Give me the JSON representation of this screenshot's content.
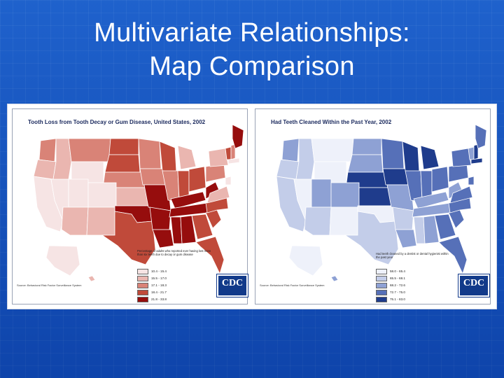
{
  "slide": {
    "title_line1": "Multivariate Relationships:",
    "title_line2": "Map Comparison"
  },
  "maps": [
    {
      "title": "Tooth Loss from Tooth Decay or Gum Disease, United States, 2002",
      "legend_caption": "Percentage of adults who reported ever having lost more than six teeth due to decay or gum disease",
      "legend": [
        {
          "label": "10.4 - 15.4",
          "color": "#f6e4e4"
        },
        {
          "label": "15.5 - 17.0",
          "color": "#eab6b0"
        },
        {
          "label": "17.1 - 18.3",
          "color": "#d98377"
        },
        {
          "label": "18.4 - 21.7",
          "color": "#c04a3a"
        },
        {
          "label": "21.8 - 33.8",
          "color": "#960d0d"
        }
      ],
      "source": "Source: Behavioral Risk Factor Surveillance System",
      "logo_text": "CDC"
    },
    {
      "title": "Had Teeth Cleaned Within the Past Year, 2002",
      "legend_caption": "Had teeth cleaned by a dentist or dental hygienist within the past year",
      "legend": [
        {
          "label": "58.0 - 65.4",
          "color": "#eef1fa"
        },
        {
          "label": "65.5 - 68.1",
          "color": "#c3cde9"
        },
        {
          "label": "68.2 - 72.6",
          "color": "#8ea1d4"
        },
        {
          "label": "72.7 - 75.0",
          "color": "#5670b8"
        },
        {
          "label": "75.1 - 83.0",
          "color": "#1f3c8c"
        }
      ],
      "source": "Source: Behavioral Risk Factor Surveillance System",
      "logo_text": "CDC"
    }
  ]
}
